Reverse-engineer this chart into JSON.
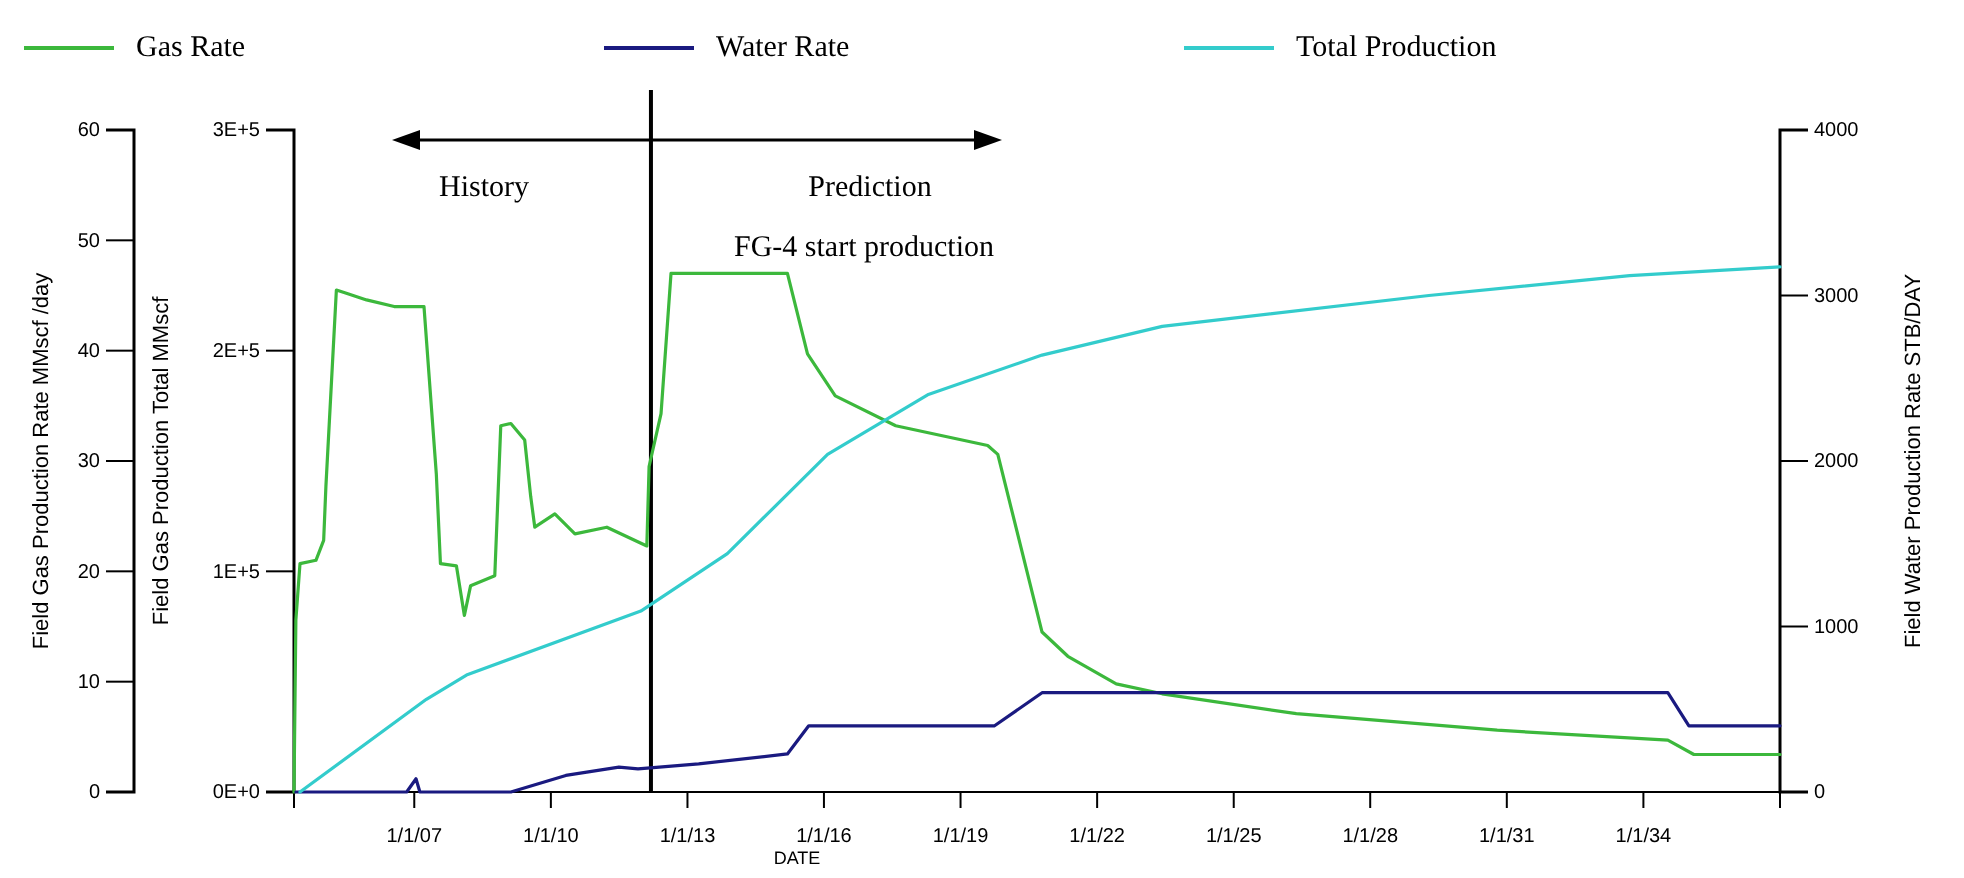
{
  "chart_data": {
    "type": "line",
    "xlabel": "DATE",
    "ylabel": "Field Gas Production Rate  MMscf /day",
    "y2label": "Field Water Production Rate  STB/DAY",
    "y3label": "Field Gas Production Total  MMscf",
    "xlim": [
      "2004-05-11",
      "2037-01-01"
    ],
    "xticks": [
      {
        "value": "2007-01-01",
        "label": "1/1/07"
      },
      {
        "value": "2010-01-01",
        "label": "1/1/10"
      },
      {
        "value": "2013-01-01",
        "label": "1/1/13"
      },
      {
        "value": "2016-01-01",
        "label": "1/1/16"
      },
      {
        "value": "2019-01-01",
        "label": "1/1/19"
      },
      {
        "value": "2022-01-01",
        "label": "1/1/22"
      },
      {
        "value": "2025-01-01",
        "label": "1/1/25"
      },
      {
        "value": "2028-01-01",
        "label": "1/1/28"
      },
      {
        "value": "2031-01-01",
        "label": "1/1/31"
      },
      {
        "value": "2034-01-01",
        "label": "1/1/34"
      }
    ],
    "ylim": [
      0,
      60
    ],
    "yticks": [
      0,
      10,
      20,
      30,
      40,
      50,
      60
    ],
    "y3lim": [
      0,
      300000
    ],
    "y3ticks": [
      {
        "value": 0,
        "label": "0E+0"
      },
      {
        "value": 100000,
        "label": "1E+5"
      },
      {
        "value": 200000,
        "label": "2E+5"
      },
      {
        "value": 300000,
        "label": "3E+5"
      }
    ],
    "y2lim": [
      0,
      4000
    ],
    "y2ticks": [
      0,
      1000,
      2000,
      3000,
      4000
    ],
    "legend": "top",
    "grid": false,
    "marker": "none",
    "line_style": "solid",
    "ref_lines": [
      {
        "axis": "x",
        "value": "2012-03-14",
        "color": "#000000"
      }
    ],
    "annotations": [
      "History",
      "Prediction",
      "FG-4 start production"
    ],
    "series": [
      {
        "name": "Gas Rate",
        "color": "#3cb83c",
        "x": [
          "2004-05-11",
          "2004-05-26",
          "2004-06-28",
          "2004-11-03",
          "2005-01-04",
          "2005-01-22",
          "2005-04-16",
          "2005-07-05",
          "2005-12-14",
          "2006-07-24",
          "2007-03-20",
          "2007-06-27",
          "2007-07-30",
          "2007-12-05",
          "2008-02-07",
          "2008-03-28",
          "2008-10-08",
          "2008-11-25",
          "2009-02-14",
          "2009-06-05",
          "2009-07-23",
          "2009-08-25",
          "2010-02-02",
          "2010-07-13",
          "2011-03-26",
          "2012-02-10",
          "2012-02-28",
          "2012-06-03",
          "2012-08-22",
          "2015-03-14",
          "2015-08-22",
          "2016-04-01",
          "2017-07-30",
          "2019-08-07",
          "2019-10-27",
          "2020-10-16",
          "2021-05-11",
          "2022-06-03",
          "2023-06-07",
          "2026-05-18",
          "2030-10-16",
          "2034-07-16",
          "2035-02-10",
          "2037-01-01"
        ],
        "values": [
          0,
          15.6,
          20.7,
          21,
          22.8,
          27.7,
          45.5,
          45.2,
          44.6,
          44,
          44,
          28.8,
          20.7,
          20.5,
          16,
          18.7,
          19.6,
          33.2,
          33.4,
          31.9,
          26.8,
          24,
          25.2,
          23.4,
          24,
          22.3,
          29.5,
          34.3,
          47,
          47,
          39.7,
          35.9,
          33.2,
          31.4,
          30.6,
          14.5,
          12.3,
          9.8,
          8.9,
          7.1,
          5.6,
          4.7,
          3.4,
          3.4
        ]
      },
      {
        "name": "Water Rate",
        "color": "#1a1a80",
        "axis": "y2",
        "x": [
          "2004-05-26",
          "2006-11-01",
          "2007-01-15",
          "2007-02-15",
          "2009-02-14",
          "2010-05-01",
          "2011-07-01",
          "2011-12-01",
          "2013-04-01",
          "2015-03-14",
          "2015-09-01",
          "2019-10-01",
          "2020-10-16",
          "2034-07-16",
          "2035-01-01",
          "2037-01-01"
        ],
        "values": [
          0,
          0,
          80,
          0,
          0,
          100,
          150,
          140,
          170,
          230,
          400,
          400,
          600,
          600,
          400,
          400
        ]
      },
      {
        "name": "Total Production",
        "color": "#33cccc",
        "axis": "y3",
        "x": [
          "2004-06-28",
          "2007-04-08",
          "2008-02-24",
          "2011-12-24",
          "2013-11-17",
          "2016-01-30",
          "2018-04-12",
          "2020-10-16",
          "2023-06-07",
          "2029-04-16",
          "2033-09-12",
          "2037-01-01"
        ],
        "values": [
          0,
          42000,
          53000,
          82000,
          108000,
          153000,
          180000,
          198000,
          211000,
          225000,
          234000,
          238000
        ]
      }
    ]
  }
}
